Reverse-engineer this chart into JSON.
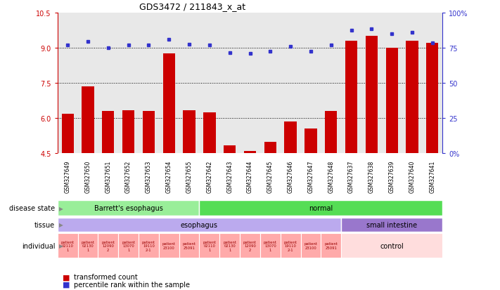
{
  "title": "GDS3472 / 211843_x_at",
  "samples": [
    "GSM327649",
    "GSM327650",
    "GSM327651",
    "GSM327652",
    "GSM327653",
    "GSM327654",
    "GSM327655",
    "GSM327642",
    "GSM327643",
    "GSM327644",
    "GSM327645",
    "GSM327646",
    "GSM327647",
    "GSM327648",
    "GSM327637",
    "GSM327638",
    "GSM327639",
    "GSM327640",
    "GSM327641"
  ],
  "bar_values": [
    6.2,
    7.35,
    6.3,
    6.35,
    6.3,
    8.75,
    6.35,
    6.25,
    4.85,
    4.6,
    5.0,
    5.85,
    5.55,
    6.3,
    9.3,
    9.5,
    9.0,
    9.3,
    9.2
  ],
  "dot_values": [
    9.1,
    9.25,
    9.0,
    9.1,
    9.1,
    9.35,
    9.15,
    9.1,
    8.8,
    8.75,
    8.85,
    9.05,
    8.85,
    9.1,
    9.75,
    9.8,
    9.6,
    9.65,
    9.2
  ],
  "ylim": [
    4.5,
    10.5
  ],
  "yticks_left": [
    4.5,
    6.0,
    7.5,
    9.0,
    10.5
  ],
  "yticks_right_pct": [
    0,
    25,
    50,
    75,
    100
  ],
  "ytick_right_labels": [
    "0%",
    "25",
    "50",
    "75",
    "100%"
  ],
  "bar_color": "#cc0000",
  "dot_color": "#3333cc",
  "plot_bg_color": "#e8e8e8",
  "xtick_bg_color": "#d8d8d8",
  "disease_state_groups": [
    {
      "label": "Barrett's esophagus",
      "start": 0,
      "end": 7,
      "color": "#99ee99"
    },
    {
      "label": "normal",
      "start": 7,
      "end": 19,
      "color": "#55dd55"
    }
  ],
  "tissue_groups": [
    {
      "label": "esophagus",
      "start": 0,
      "end": 14,
      "color": "#bbaaee"
    },
    {
      "label": "small intestine",
      "start": 14,
      "end": 19,
      "color": "#9977cc"
    }
  ],
  "individual_patients": [
    {
      "label": "patient\n02110\n1",
      "start": 0,
      "end": 1
    },
    {
      "label": "patient\n02130\n1",
      "start": 1,
      "end": 2
    },
    {
      "label": "patient\n12090\n2",
      "start": 2,
      "end": 3
    },
    {
      "label": "patient\n13070\n1",
      "start": 3,
      "end": 4
    },
    {
      "label": "patient\n19110\n2-1",
      "start": 4,
      "end": 5
    },
    {
      "label": "patient\n23100",
      "start": 5,
      "end": 6
    },
    {
      "label": "patient\n25091",
      "start": 6,
      "end": 7
    },
    {
      "label": "patient\n02110\n1",
      "start": 7,
      "end": 8
    },
    {
      "label": "patient\n02130\n1",
      "start": 8,
      "end": 9
    },
    {
      "label": "patient\n12090\n2",
      "start": 9,
      "end": 10
    },
    {
      "label": "patient\n13070\n1",
      "start": 10,
      "end": 11
    },
    {
      "label": "patient\n19110\n2-1",
      "start": 11,
      "end": 12
    },
    {
      "label": "patient\n23100",
      "start": 12,
      "end": 13
    },
    {
      "label": "patient\n25091",
      "start": 13,
      "end": 14
    }
  ],
  "individual_esoph_color": "#ffaaaa",
  "individual_control_color": "#ffdddd",
  "dotted_lines": [
    6.0,
    7.5,
    9.0
  ],
  "bar_width": 0.6
}
